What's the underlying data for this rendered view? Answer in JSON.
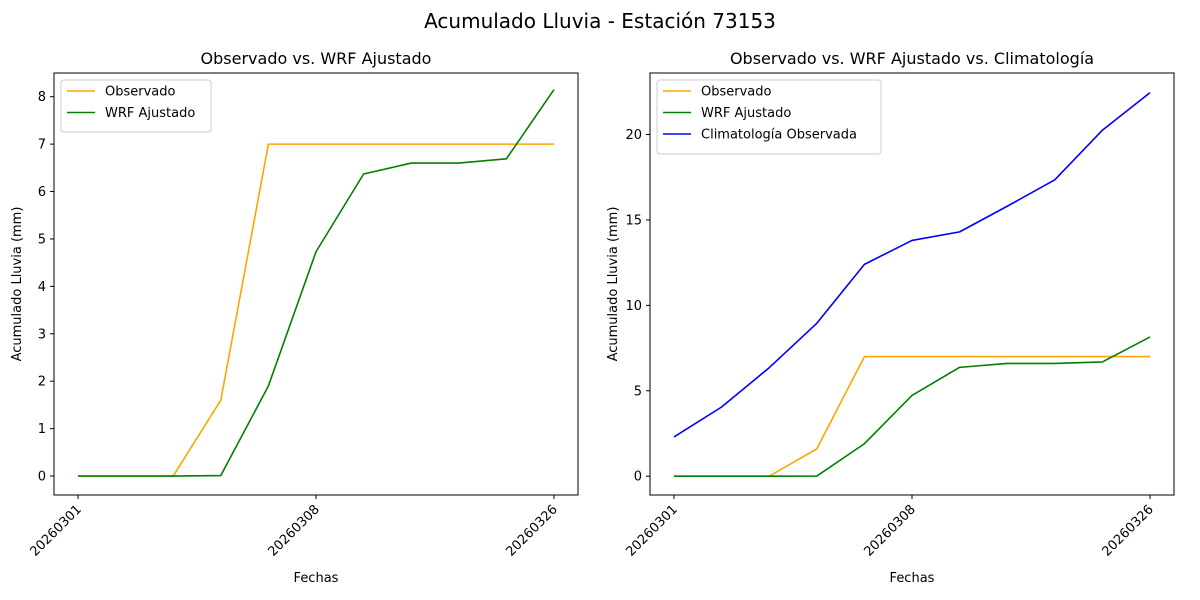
{
  "suptitle": "Acumulado Lluvia - Estación 73153",
  "colors": {
    "observado": "#ffa500",
    "wrf": "#008000",
    "climatologia": "#0000ff",
    "axes": "#000000",
    "background": "#ffffff"
  },
  "chart_data": [
    {
      "type": "line",
      "title": "Observado vs. WRF Ajustado",
      "xlabel": "Fechas",
      "ylabel": "Acumulado Lluvia (mm)",
      "x_index": [
        0,
        1,
        2,
        3,
        4,
        5,
        6,
        7,
        8,
        9,
        10
      ],
      "xticks": [
        {
          "index": 0,
          "label": "20260301"
        },
        {
          "index": 5,
          "label": "20260308"
        },
        {
          "index": 10,
          "label": "20260326"
        }
      ],
      "ylim": [
        -0.4,
        8.5
      ],
      "yticks": [
        0,
        1,
        2,
        3,
        4,
        5,
        6,
        7,
        8
      ],
      "legend_position": "upper-left",
      "grid": false,
      "series": [
        {
          "name": "Observado",
          "color_key": "observado",
          "values": [
            0,
            0,
            0,
            1.6,
            7,
            7,
            7,
            7,
            7,
            7,
            7
          ]
        },
        {
          "name": "WRF Ajustado",
          "color_key": "wrf",
          "values": [
            0,
            0,
            0,
            0.01,
            1.9,
            4.73,
            6.37,
            6.6,
            6.6,
            6.69,
            8.15
          ]
        }
      ]
    },
    {
      "type": "line",
      "title": "Observado vs. WRF Ajustado vs. Climatología",
      "xlabel": "Fechas",
      "ylabel": "Acumulado Lluvia (mm)",
      "x_index": [
        0,
        1,
        2,
        3,
        4,
        5,
        6,
        7,
        8,
        9,
        10
      ],
      "xticks": [
        {
          "index": 0,
          "label": "20260301"
        },
        {
          "index": 5,
          "label": "20260308"
        },
        {
          "index": 10,
          "label": "20260326"
        }
      ],
      "ylim": [
        -1.1,
        23.6
      ],
      "yticks": [
        0,
        5,
        10,
        15,
        20
      ],
      "legend_position": "upper-left",
      "grid": false,
      "series": [
        {
          "name": "Observado",
          "color_key": "observado",
          "values": [
            0,
            0,
            0,
            1.6,
            7,
            7,
            7,
            7,
            7,
            7,
            7
          ]
        },
        {
          "name": "WRF Ajustado",
          "color_key": "wrf",
          "values": [
            0,
            0,
            0,
            0.01,
            1.9,
            4.73,
            6.37,
            6.6,
            6.6,
            6.69,
            8.15
          ]
        },
        {
          "name": "Climatología Observada",
          "color_key": "climatologia",
          "values": [
            2.3,
            4.05,
            6.35,
            8.95,
            12.4,
            13.8,
            14.3,
            15.8,
            17.35,
            20.25,
            22.45
          ]
        }
      ]
    }
  ]
}
